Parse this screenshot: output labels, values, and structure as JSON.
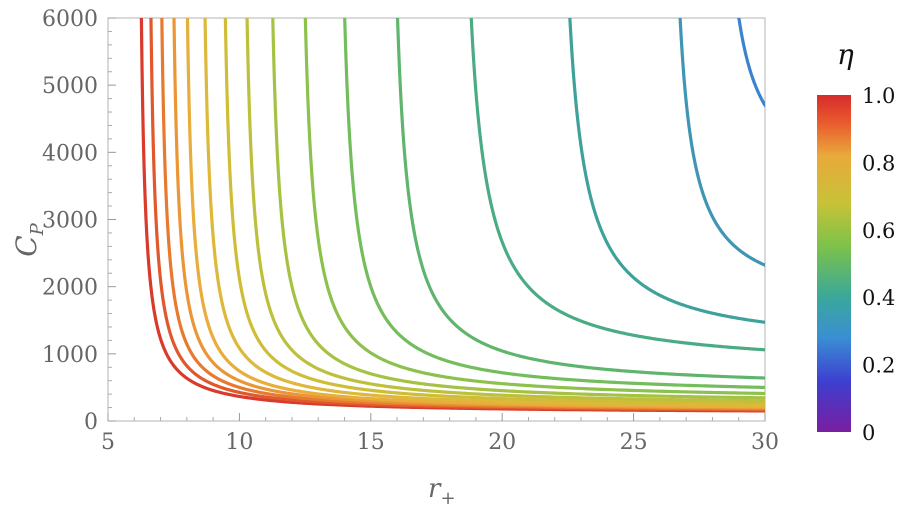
{
  "chart_data": {
    "type": "line",
    "title": "",
    "xlabel": "r",
    "xlabel_subscript": "+",
    "ylabel": "C",
    "ylabel_subscript": "P",
    "xlim": [
      5,
      30
    ],
    "ylim": [
      0,
      6000
    ],
    "x_ticks": [
      "5",
      "10",
      "15",
      "20",
      "25",
      "30"
    ],
    "y_ticks": [
      "0",
      "1000",
      "2000",
      "3000",
      "4000",
      "5000",
      "6000"
    ],
    "grid": false,
    "legend": {
      "type": "colorbar",
      "placement": "right",
      "title": "η",
      "range": [
        0,
        1
      ],
      "tick_labels": [
        "0",
        "0.2",
        "0.4",
        "0.6",
        "0.8",
        "1.0"
      ],
      "colors": [
        "#7a1ea1",
        "#3d3fd0",
        "#3a8fd3",
        "#3aa89a",
        "#7cc24a",
        "#c8c238",
        "#e9a93a",
        "#e9592e",
        "#d62c2c"
      ]
    },
    "curve_model": "C = 160 + (r_vertical_asymptote_offset_fit) ; each series rises vertically near its asymptote r0 and flattens toward a floor",
    "series": [
      {
        "eta": 0.98,
        "asymptote_r": 6.1,
        "y_at_r30": 150,
        "color": "#d83a2c"
      },
      {
        "eta": 0.94,
        "asymptote_r": 6.45,
        "y_at_r30": 165,
        "color": "#e0582c"
      },
      {
        "eta": 0.9,
        "asymptote_r": 6.85,
        "y_at_r30": 180,
        "color": "#e87a30"
      },
      {
        "eta": 0.86,
        "asymptote_r": 7.3,
        "y_at_r30": 195,
        "color": "#eb9636"
      },
      {
        "eta": 0.82,
        "asymptote_r": 7.8,
        "y_at_r30": 210,
        "color": "#e8ad3a"
      },
      {
        "eta": 0.78,
        "asymptote_r": 8.45,
        "y_at_r30": 235,
        "color": "#ddb83a"
      },
      {
        "eta": 0.74,
        "asymptote_r": 9.2,
        "y_at_r30": 265,
        "color": "#cfbd38"
      },
      {
        "eta": 0.7,
        "asymptote_r": 10.0,
        "y_at_r30": 300,
        "color": "#bdc03c"
      },
      {
        "eta": 0.66,
        "asymptote_r": 10.95,
        "y_at_r30": 345,
        "color": "#a6c244"
      },
      {
        "eta": 0.62,
        "asymptote_r": 12.15,
        "y_at_r30": 410,
        "color": "#8cc14e"
      },
      {
        "eta": 0.58,
        "asymptote_r": 13.6,
        "y_at_r30": 500,
        "color": "#74bd5c"
      },
      {
        "eta": 0.54,
        "asymptote_r": 15.55,
        "y_at_r30": 640,
        "color": "#5fb56e"
      },
      {
        "eta": 0.5,
        "asymptote_r": 18.15,
        "y_at_r30": 1060,
        "color": "#4aab85"
      },
      {
        "eta": 0.44,
        "asymptote_r": 21.9,
        "y_at_r30": 1470,
        "color": "#3ea29a"
      },
      {
        "eta": 0.38,
        "asymptote_r": 26.2,
        "y_at_r30": 2320,
        "color": "#3f96b4"
      },
      {
        "eta": 0.3,
        "asymptote_r": 28.0,
        "y_at_r30": 4700,
        "color": "#3c83cf"
      }
    ]
  }
}
